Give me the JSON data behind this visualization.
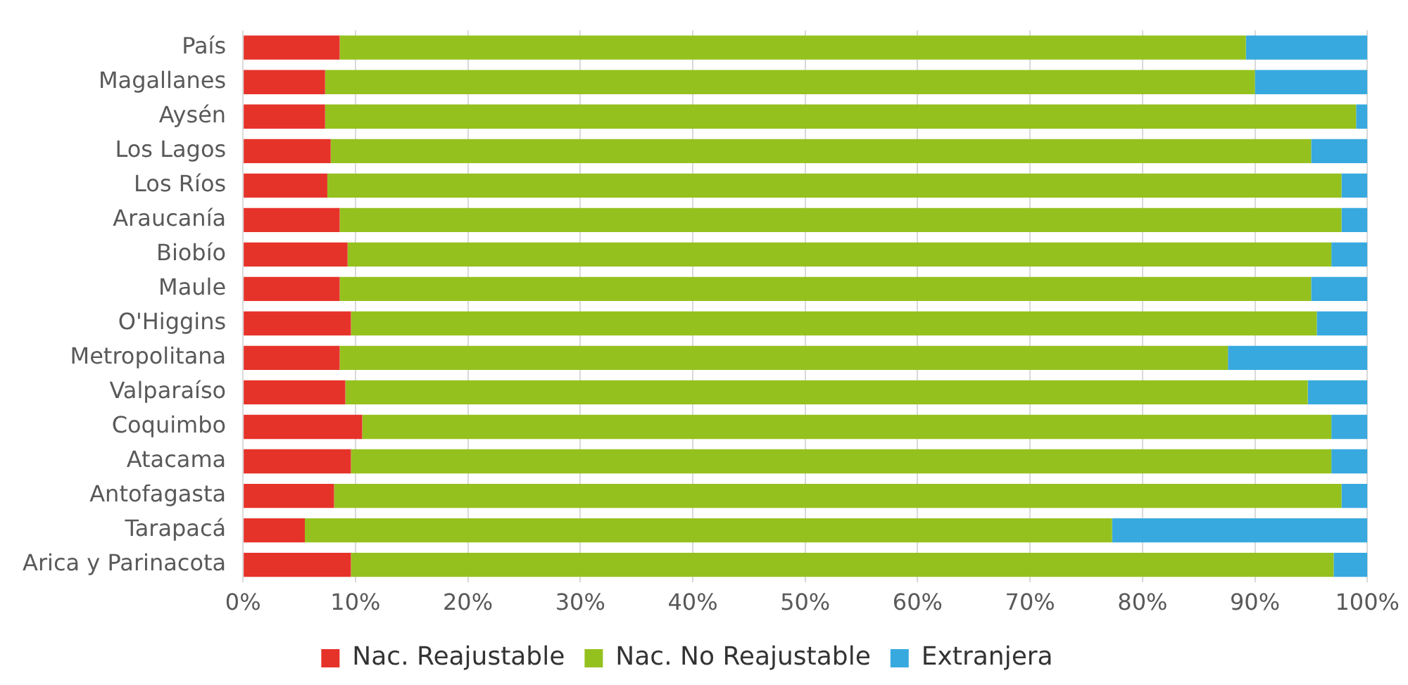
{
  "chart_data": {
    "type": "bar",
    "orientation": "horizontal",
    "stacked": true,
    "categories": [
      "País",
      "Magallanes",
      "Aysén",
      "Los Lagos",
      "Los Ríos",
      "Araucanía",
      "Biobío",
      "Maule",
      "O'Higgins",
      "Metropolitana",
      "Valparaíso",
      "Coquimbo",
      "Atacama",
      "Antofagasta",
      "Tarapacá",
      "Arica y Parinacota"
    ],
    "series": [
      {
        "name": "Nac. Reajustable",
        "color": "#e6332a",
        "values": [
          8.6,
          7.3,
          7.3,
          7.8,
          7.5,
          8.6,
          9.3,
          8.6,
          9.6,
          8.6,
          9.1,
          10.6,
          9.6,
          8.1,
          5.5,
          9.6
        ]
      },
      {
        "name": "Nac. No Reajustable",
        "color": "#95c11f",
        "values": [
          80.6,
          82.7,
          91.7,
          87.2,
          90.2,
          89.1,
          87.5,
          86.4,
          85.9,
          79.0,
          85.6,
          86.2,
          87.2,
          89.6,
          71.8,
          87.4
        ]
      },
      {
        "name": "Extranjera",
        "color": "#38a9df",
        "values": [
          10.8,
          10.0,
          1.0,
          5.0,
          2.3,
          2.3,
          3.2,
          5.0,
          4.5,
          12.4,
          5.3,
          3.2,
          3.2,
          2.3,
          22.7,
          3.0
        ]
      }
    ],
    "xlim": [
      0,
      100
    ],
    "xticks": [
      {
        "value": 0,
        "label": "0%"
      },
      {
        "value": 10,
        "label": "10%"
      },
      {
        "value": 20,
        "label": "20%"
      },
      {
        "value": 30,
        "label": "30%"
      },
      {
        "value": 40,
        "label": "40%"
      },
      {
        "value": 50,
        "label": "50%"
      },
      {
        "value": 60,
        "label": "60%"
      },
      {
        "value": 70,
        "label": "70%"
      },
      {
        "value": 80,
        "label": "80%"
      },
      {
        "value": 90,
        "label": "90%"
      },
      {
        "value": 100,
        "label": "100%"
      }
    ],
    "grid": "x",
    "legend": "bottom"
  }
}
